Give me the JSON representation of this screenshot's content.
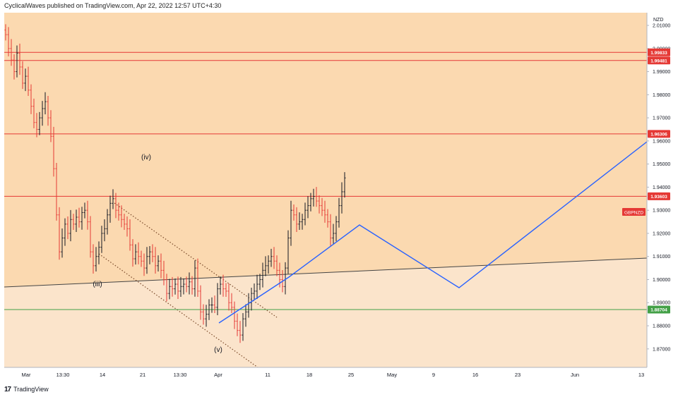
{
  "header": {
    "publisher_text": "CyclicalWaves published on TradingView.com, Apr 22, 2022 12:57 UTC+4:30"
  },
  "footer": {
    "logo_mark": "17",
    "brand": "TradingView"
  },
  "chart_data": {
    "type": "candlestick",
    "symbol": "GBPNZD",
    "currency": "NZD",
    "last_price_label": "GBPNZD",
    "yaxis": {
      "ylim": [
        1.862,
        2.0155
      ],
      "ticks": [
        "2.01000",
        "2.00000",
        "1.99000",
        "1.98000",
        "1.97000",
        "1.96000",
        "1.95000",
        "1.94000",
        "1.93000",
        "1.92000",
        "1.91000",
        "1.90000",
        "1.89000",
        "1.88000",
        "1.87000"
      ]
    },
    "xaxis": {
      "ticks": [
        "Mar",
        "13:30",
        "14",
        "21",
        "13:30",
        "Apr",
        "11",
        "18",
        "25",
        "May",
        "9",
        "16",
        "23",
        "Jun",
        "13"
      ]
    },
    "horizontal_levels": [
      {
        "value": 1.99833,
        "label": "1.99833",
        "color": "#e53935"
      },
      {
        "value": 1.99481,
        "label": "1.99481",
        "color": "#e53935"
      },
      {
        "value": 1.96306,
        "label": "1.96306",
        "color": "#e53935"
      },
      {
        "value": 1.93603,
        "label": "1.93603",
        "color": "#e53935"
      },
      {
        "value": 1.88704,
        "label": "1.88704",
        "color": "#43a047"
      }
    ],
    "wave_labels": [
      "(iv)",
      "(iii)",
      "(v)"
    ],
    "colors": {
      "candle_up": "#131722",
      "candle_down": "#e53935",
      "zone_upper": "#fbd9b0",
      "zone_lower": "#fbe4cb",
      "projection": "#2962ff",
      "trendline": "#444444"
    }
  }
}
